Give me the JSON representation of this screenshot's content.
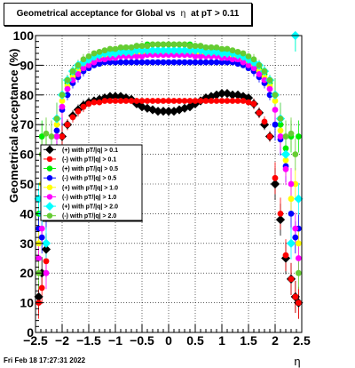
{
  "title": {
    "main": "Geometrical acceptance for Global vs",
    "eta": "η",
    "cut": "at pT > 0.11"
  },
  "footer": "Fri Feb 18 17:27:31 2022",
  "chart_data": {
    "type": "scatter",
    "title": "Geometrical acceptance for Global vs η at pT > 0.11",
    "xlabel": "η",
    "ylabel": "Geometrical acceptance (%)",
    "xlim": [
      -2.5,
      2.5
    ],
    "ylim": [
      0,
      100
    ],
    "xticks": [
      "−2.5",
      "−2",
      "−1.5",
      "−1",
      "−0.5",
      "0",
      "0.5",
      "1",
      "1.5",
      "2",
      "2.5"
    ],
    "yticks": [
      "0",
      "10",
      "20",
      "30",
      "40",
      "50",
      "60",
      "70",
      "80",
      "90",
      "100"
    ],
    "grid": true,
    "legend_position": "left-middle",
    "series": [
      {
        "name": "(+) with pT/|q| > 0.1",
        "color": "#000000",
        "marker": "diamond",
        "x": [
          -2.44,
          -2.38,
          -2.3,
          -2.2,
          -2.1,
          -2.0,
          -1.9,
          -1.8,
          -1.7,
          -1.6,
          -1.5,
          -1.4,
          -1.3,
          -1.2,
          -1.1,
          -1.0,
          -0.9,
          -0.8,
          -0.7,
          -0.6,
          -0.5,
          -0.4,
          -0.3,
          -0.2,
          -0.1,
          0.0,
          0.1,
          0.2,
          0.3,
          0.4,
          0.5,
          0.6,
          0.7,
          0.8,
          0.9,
          1.0,
          1.1,
          1.2,
          1.3,
          1.4,
          1.5,
          1.6,
          1.7,
          1.8,
          1.9,
          2.0,
          2.1,
          2.2,
          2.3,
          2.38,
          2.44
        ],
        "y": [
          12,
          20,
          28,
          50,
          62,
          66,
          70,
          73,
          75,
          76.5,
          77.5,
          78,
          78.5,
          79,
          79.5,
          79.5,
          79.5,
          79,
          78.5,
          77,
          76,
          75.5,
          75,
          74.5,
          74.5,
          74.5,
          74.5,
          75,
          75.5,
          76,
          77,
          78,
          79,
          79.5,
          80,
          80.5,
          80.5,
          80,
          80,
          79.5,
          79,
          77,
          74,
          70,
          66,
          50,
          38,
          25,
          18,
          12,
          10
        ]
      },
      {
        "name": "(-) with pT/|q| > 0.1",
        "color": "#ff0000",
        "marker": "circle",
        "x": [
          -2.44,
          -2.38,
          -2.3,
          -2.2,
          -2.1,
          -2.0,
          -1.9,
          -1.8,
          -1.7,
          -1.6,
          -1.5,
          -1.4,
          -1.3,
          -1.2,
          -1.1,
          -1.0,
          -0.9,
          -0.8,
          -0.7,
          -0.6,
          -0.5,
          -0.4,
          -0.3,
          -0.2,
          -0.1,
          0.0,
          0.1,
          0.2,
          0.3,
          0.4,
          0.5,
          0.6,
          0.7,
          0.8,
          0.9,
          1.0,
          1.1,
          1.2,
          1.3,
          1.4,
          1.5,
          1.6,
          1.7,
          1.8,
          1.9,
          2.0,
          2.1,
          2.2,
          2.3,
          2.38,
          2.44
        ],
        "y": [
          10,
          15,
          24,
          46,
          60,
          66,
          70,
          72.5,
          74.5,
          76,
          77,
          77.5,
          77.5,
          78,
          78,
          78,
          78,
          78,
          78,
          78,
          78,
          78,
          78,
          78,
          78,
          78,
          78,
          78,
          78,
          78,
          78,
          78,
          78,
          78,
          78,
          78,
          78,
          78,
          78,
          78,
          77.5,
          77,
          74,
          71,
          66,
          52,
          40,
          26,
          18,
          12,
          10
        ]
      },
      {
        "name": "(+) with pT/|q| > 0.5",
        "color": "#00ee00",
        "marker": "circle",
        "x": [
          -2.44,
          -2.38,
          -2.3,
          -2.2,
          -2.1,
          -2.0,
          -1.9,
          -1.8,
          -1.7,
          -1.6,
          -1.5,
          -1.4,
          -1.3,
          -1.2,
          -1.1,
          -1.0,
          -0.9,
          -0.8,
          -0.7,
          -0.6,
          -0.5,
          -0.4,
          -0.3,
          -0.2,
          -0.1,
          0.0,
          0.1,
          0.2,
          0.3,
          0.4,
          0.5,
          0.6,
          0.7,
          0.8,
          0.9,
          1.0,
          1.1,
          1.2,
          1.3,
          1.4,
          1.5,
          1.6,
          1.7,
          1.8,
          1.9,
          2.0,
          2.1,
          2.2,
          2.3,
          2.38,
          2.44
        ],
        "y": [
          40,
          66,
          62,
          52,
          66,
          80,
          84,
          87,
          89,
          91,
          92,
          93,
          94,
          94.5,
          95,
          95,
          95.5,
          96,
          96,
          96.5,
          96.5,
          97,
          97,
          97,
          97,
          97,
          97,
          97,
          97,
          97,
          96.5,
          96.5,
          96,
          96,
          95.5,
          95,
          95,
          94.5,
          94,
          93,
          92,
          91,
          89,
          87,
          84,
          80,
          70,
          62,
          66,
          100,
          66
        ]
      },
      {
        "name": "(-) with pT/|q| > 0.5",
        "color": "#0000ff",
        "marker": "circle",
        "x": [
          -2.44,
          -2.38,
          -2.3,
          -2.2,
          -2.1,
          -2.0,
          -1.9,
          -1.8,
          -1.7,
          -1.6,
          -1.5,
          -1.4,
          -1.3,
          -1.2,
          -1.1,
          -1.0,
          -0.9,
          -0.8,
          -0.7,
          -0.6,
          -0.5,
          -0.4,
          -0.3,
          -0.2,
          -0.1,
          0.0,
          0.1,
          0.2,
          0.3,
          0.4,
          0.5,
          0.6,
          0.7,
          0.8,
          0.9,
          1.0,
          1.1,
          1.2,
          1.3,
          1.4,
          1.5,
          1.6,
          1.7,
          1.8,
          1.9,
          2.0,
          2.1,
          2.2,
          2.3,
          2.38,
          2.44
        ],
        "y": [
          35,
          32,
          40,
          56,
          68,
          75,
          80,
          84,
          86,
          88,
          89,
          90,
          90.5,
          91,
          91,
          91,
          91,
          91,
          91,
          91,
          91,
          91,
          91,
          91,
          91,
          91,
          91,
          91,
          91,
          91,
          91,
          91,
          91,
          91,
          91,
          91,
          91,
          91,
          90.5,
          90,
          89,
          88,
          86,
          84,
          80,
          70,
          65,
          56,
          40,
          32,
          35
        ]
      },
      {
        "name": "(+) with pT/|q| > 1.0",
        "color": "#ffff00",
        "marker": "circle",
        "x": [
          -2.44,
          -2.38,
          -2.3,
          -2.2,
          -2.1,
          -2.0,
          -1.9,
          -1.8,
          -1.7,
          -1.6,
          -1.5,
          -1.4,
          -1.3,
          -1.2,
          -1.1,
          -1.0,
          -0.9,
          -0.8,
          -0.7,
          -0.6,
          -0.5,
          -0.4,
          -0.3,
          -0.2,
          -0.1,
          0.0,
          0.1,
          0.2,
          0.3,
          0.4,
          0.5,
          0.6,
          0.7,
          0.8,
          0.9,
          1.0,
          1.1,
          1.2,
          1.3,
          1.4,
          1.5,
          1.6,
          1.7,
          1.8,
          1.9,
          2.0,
          2.1,
          2.2,
          2.3,
          2.38,
          2.44
        ],
        "y": [
          30,
          50,
          45,
          58,
          70,
          78,
          83,
          86,
          88,
          90,
          91,
          92,
          92.5,
          93,
          93,
          93.5,
          93.5,
          93.5,
          94,
          94,
          94,
          94,
          94,
          94,
          94,
          94,
          94,
          94,
          94,
          94,
          94,
          94,
          94,
          93.5,
          93.5,
          93.5,
          93,
          93,
          92.5,
          92,
          91,
          90,
          88,
          86,
          83,
          78,
          68,
          58,
          45,
          50,
          30
        ]
      },
      {
        "name": "(-) with pT/|q| > 1.0",
        "color": "#ff00ff",
        "marker": "circle",
        "x": [
          -2.44,
          -2.38,
          -2.3,
          -2.2,
          -2.1,
          -2.0,
          -1.9,
          -1.8,
          -1.7,
          -1.6,
          -1.5,
          -1.4,
          -1.3,
          -1.2,
          -1.1,
          -1.0,
          -0.9,
          -0.8,
          -0.7,
          -0.6,
          -0.5,
          -0.4,
          -0.3,
          -0.2,
          -0.1,
          0.0,
          0.1,
          0.2,
          0.3,
          0.4,
          0.5,
          0.6,
          0.7,
          0.8,
          0.9,
          1.0,
          1.1,
          1.2,
          1.3,
          1.4,
          1.5,
          1.6,
          1.7,
          1.8,
          1.9,
          2.0,
          2.1,
          2.2,
          2.3,
          2.38,
          2.44
        ],
        "y": [
          25,
          35,
          20,
          55,
          66,
          76,
          82,
          85,
          87,
          89,
          90,
          91,
          92,
          92,
          92.5,
          92.5,
          93,
          93,
          93,
          93,
          93,
          93.5,
          93.5,
          93.5,
          93.5,
          93.5,
          93.5,
          93.5,
          93.5,
          93.5,
          93,
          93,
          93,
          93,
          93,
          92.5,
          92.5,
          92,
          92,
          91,
          90,
          89,
          87,
          85,
          82,
          75,
          66,
          55,
          50,
          35,
          25
        ]
      },
      {
        "name": "(+) with pT/|q| > 2.0",
        "color": "#00ffff",
        "marker": "diamond",
        "x": [
          -2.44,
          -2.38,
          -2.3,
          -2.2,
          -2.1,
          -2.0,
          -1.9,
          -1.8,
          -1.7,
          -1.6,
          -1.5,
          -1.4,
          -1.3,
          -1.2,
          -1.1,
          -1.0,
          -0.9,
          -0.8,
          -0.7,
          -0.6,
          -0.5,
          -0.4,
          -0.3,
          -0.2,
          -0.1,
          0.0,
          0.1,
          0.2,
          0.3,
          0.4,
          0.5,
          0.6,
          0.7,
          0.8,
          0.9,
          1.0,
          1.1,
          1.2,
          1.3,
          1.4,
          1.5,
          1.6,
          1.7,
          1.8,
          1.9,
          2.0,
          2.1,
          2.2,
          2.3,
          2.38,
          2.44
        ],
        "y": [
          45,
          40,
          30,
          60,
          72,
          80,
          85,
          88,
          90,
          91,
          92,
          93,
          93.5,
          94,
          94,
          94,
          94.5,
          94.5,
          94.5,
          95,
          95,
          95,
          95,
          95,
          95,
          95,
          95,
          95,
          95,
          95,
          95,
          95,
          94.5,
          94.5,
          94.5,
          94,
          94,
          94,
          93.5,
          93,
          92,
          91,
          90,
          88,
          85,
          80,
          72,
          60,
          30,
          100,
          45
        ]
      },
      {
        "name": "(-) with pT/|q| > 2.0",
        "color": "#66cc33",
        "marker": "circle",
        "x": [
          -2.44,
          -2.38,
          -2.3,
          -2.2,
          -2.1,
          -2.0,
          -1.9,
          -1.8,
          -1.7,
          -1.6,
          -1.5,
          -1.4,
          -1.3,
          -1.2,
          -1.1,
          -1.0,
          -0.9,
          -0.8,
          -0.7,
          -0.6,
          -0.5,
          -0.4,
          -0.3,
          -0.2,
          -0.1,
          0.0,
          0.1,
          0.2,
          0.3,
          0.4,
          0.5,
          0.6,
          0.7,
          0.8,
          0.9,
          1.0,
          1.1,
          1.2,
          1.3,
          1.4,
          1.5,
          1.6,
          1.7,
          1.8,
          1.9,
          2.0,
          2.1,
          2.2,
          2.3,
          2.38,
          2.44
        ],
        "y": [
          20,
          60,
          67,
          66,
          72,
          80,
          85,
          88,
          90,
          92,
          93,
          94,
          94.5,
          95,
          95.5,
          95.5,
          96,
          96,
          96,
          96.5,
          96.5,
          96.5,
          97,
          97,
          97,
          97,
          97,
          97,
          97,
          96.5,
          96.5,
          96.5,
          96,
          96,
          96,
          95.5,
          95.5,
          95,
          94.5,
          94,
          93,
          92,
          90,
          88,
          85,
          80,
          72,
          66,
          67,
          60,
          20
        ]
      }
    ]
  }
}
